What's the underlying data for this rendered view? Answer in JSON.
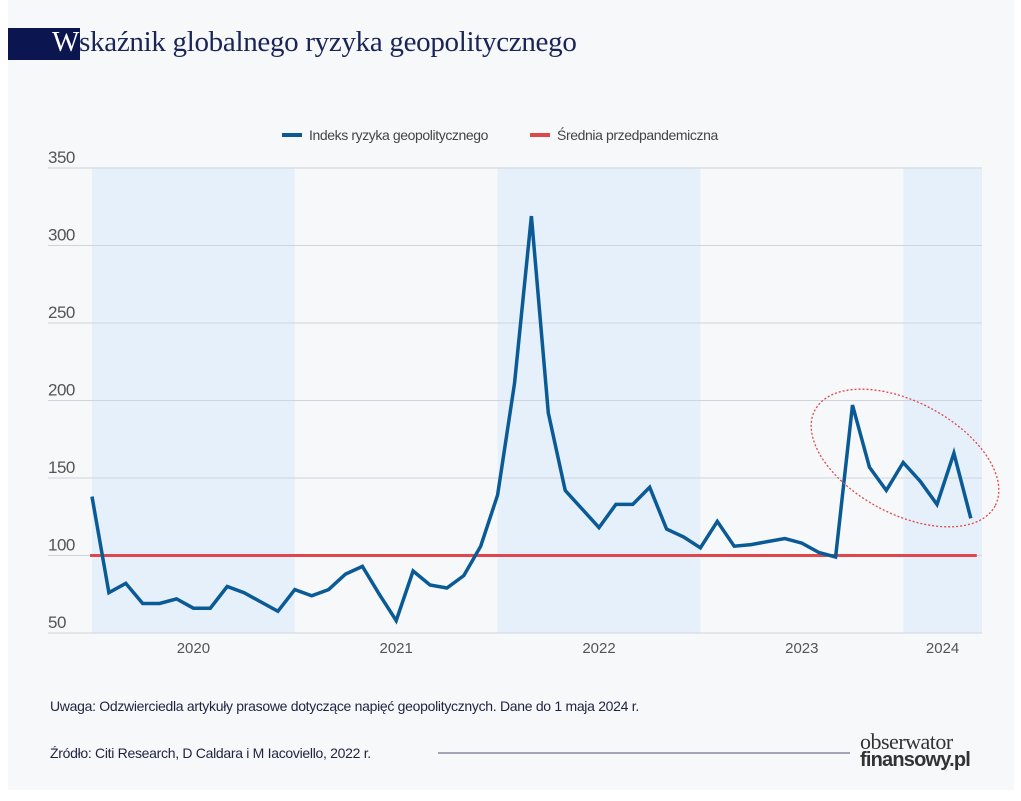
{
  "title_first_letter": "W",
  "title_rest": "skaźnik globalnego ryzyka geopolitycznego",
  "note": "Uwaga: Odzwierciedla artykuły prasowe dotyczące napięć geopolitycznych. Dane do 1 maja 2024 r.",
  "source": "Źródło: Citi Research, D Caldara i M Iacoviello, 2022 r.",
  "logo": {
    "line1": "obserwator",
    "line2": "finansowy.pl"
  },
  "colors": {
    "index": "#0a5a96",
    "average": "#e0474c",
    "band": "#e6f0fa",
    "title": "#0b1650",
    "ellipse": "#e0474c"
  },
  "chart_data": {
    "type": "line",
    "title": "Wskaźnik globalnego ryzyka geopolitycznego",
    "xlabel": "",
    "ylabel": "",
    "ylim": [
      50,
      350
    ],
    "yticks": [
      50,
      100,
      150,
      200,
      250,
      300,
      350
    ],
    "xticks": [
      "2020",
      "2021",
      "2022",
      "2023",
      "2024"
    ],
    "grid": "horizontal",
    "legend_position": "top-center",
    "x_start": "2020-01",
    "x_end": "2024-05",
    "shaded_years": [
      "2020",
      "2022",
      "2024"
    ],
    "series": [
      {
        "name": "Indeks ryzyka geopolitycznego",
        "color": "#0a5a96",
        "values": [
          138,
          76,
          82,
          69,
          69,
          72,
          66,
          66,
          80,
          76,
          70,
          64,
          78,
          74,
          78,
          88,
          93,
          75,
          58,
          90,
          81,
          79,
          87,
          106,
          139,
          211,
          319,
          192,
          142,
          130,
          118,
          133,
          133,
          144,
          117,
          112,
          105,
          122,
          106,
          107,
          109,
          111,
          108,
          102,
          99,
          197,
          157,
          142,
          160,
          148,
          133,
          166,
          124
        ]
      },
      {
        "name": "Średnia przedpandemiczna",
        "color": "#e0474c",
        "values": [
          100
        ]
      }
    ],
    "annotation": "dashed ellipse highlighting 2023-10 to 2024-05"
  }
}
